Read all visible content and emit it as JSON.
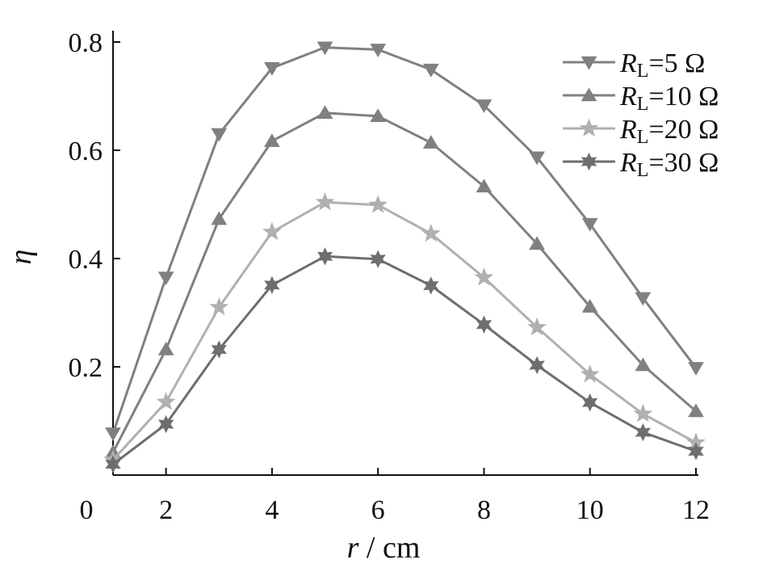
{
  "chart_data": {
    "type": "line",
    "xlabel": {
      "var": "r",
      "unit": " / cm"
    },
    "ylabel": "η",
    "xlim": [
      1,
      12
    ],
    "ylim": [
      0,
      0.8
    ],
    "x_ticks": [
      2,
      4,
      6,
      8,
      10,
      12
    ],
    "x_tick_labels": [
      "2",
      "4",
      "6",
      "8",
      "10",
      "12"
    ],
    "y_ticks": [
      0.2,
      0.4,
      0.6,
      0.8
    ],
    "y_tick_labels": [
      "0.2",
      "0.4",
      "0.6",
      "0.8"
    ],
    "origin_label": "0",
    "grid": false,
    "legend_position": "top-right",
    "x": [
      1,
      2,
      3,
      4,
      5,
      6,
      7,
      8,
      9,
      10,
      11,
      12
    ],
    "series": [
      {
        "name": "R_L=5 Ω",
        "name_parts": {
          "var": "R",
          "sub": "L",
          "rest": "=5  Ω"
        },
        "marker": "triangle-down",
        "color": "#808080",
        "values": [
          0.077,
          0.365,
          0.63,
          0.752,
          0.79,
          0.786,
          0.749,
          0.683,
          0.587,
          0.464,
          0.327,
          0.198
        ]
      },
      {
        "name": "R_L=10 Ω",
        "name_parts": {
          "var": "R",
          "sub": "L",
          "rest": "=10  Ω"
        },
        "marker": "triangle-up",
        "color": "#808080",
        "values": [
          0.042,
          0.232,
          0.473,
          0.617,
          0.669,
          0.663,
          0.614,
          0.533,
          0.427,
          0.311,
          0.203,
          0.118
        ]
      },
      {
        "name": "R_L=20 Ω",
        "name_parts": {
          "var": "R",
          "sub": "L",
          "rest": "=20  Ω"
        },
        "marker": "star5",
        "color": "#b0b0b0",
        "values": [
          0.028,
          0.135,
          0.31,
          0.449,
          0.504,
          0.499,
          0.446,
          0.365,
          0.273,
          0.186,
          0.113,
          0.06
        ]
      },
      {
        "name": "R_L=30 Ω",
        "name_parts": {
          "var": "R",
          "sub": "L",
          "rest": "=30  Ω"
        },
        "marker": "star6",
        "color": "#6e6e6e",
        "values": [
          0.02,
          0.094,
          0.232,
          0.351,
          0.404,
          0.399,
          0.35,
          0.278,
          0.203,
          0.134,
          0.079,
          0.044
        ]
      }
    ]
  }
}
